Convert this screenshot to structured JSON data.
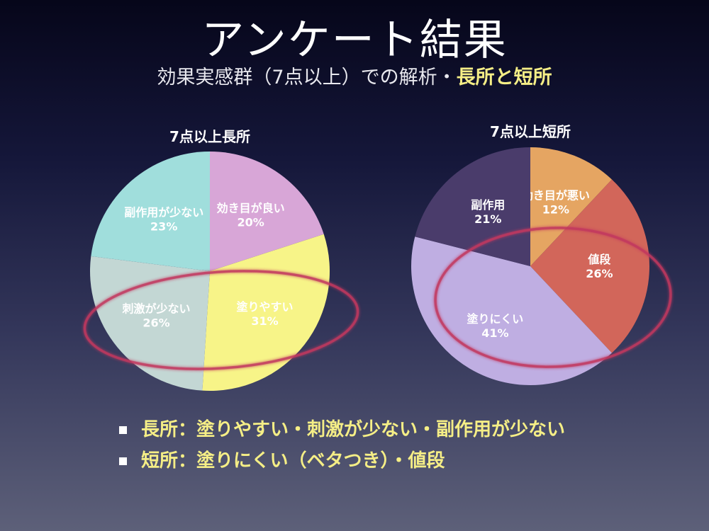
{
  "slide": {
    "title": "アンケート結果",
    "subtitle_prefix": "効果実感群（7点以上）での解析・",
    "subtitle_highlight": "長所と短所"
  },
  "chart_data": [
    {
      "type": "pie",
      "title": "7点以上長所",
      "slices": [
        {
          "label": "効き目が良い",
          "value": 20,
          "pct_text": "20%",
          "color": "#d8a6d7"
        },
        {
          "label": "塗りやすい",
          "value": 31,
          "pct_text": "31%",
          "color": "#f7f488"
        },
        {
          "label": "刺激が少ない",
          "value": 26,
          "pct_text": "26%",
          "color": "#c3d7d4"
        },
        {
          "label": "副作用が少ない",
          "value": 23,
          "pct_text": "23%",
          "color": "#a0dedc"
        }
      ],
      "highlighted": [
        "塗りやすい",
        "刺激が少ない"
      ]
    },
    {
      "type": "pie",
      "title": "7点以上短所",
      "slices": [
        {
          "label": "効き目が悪い",
          "value": 12,
          "pct_text": "12%",
          "color": "#e5a562"
        },
        {
          "label": "値段",
          "value": 26,
          "pct_text": "26%",
          "color": "#d2665a"
        },
        {
          "label": "塗りにくい",
          "value": 41,
          "pct_text": "41%",
          "color": "#bfaee2"
        },
        {
          "label": "副作用",
          "value": 21,
          "pct_text": "21%",
          "color": "#4a3c6b"
        }
      ],
      "highlighted": [
        "塗りにくい"
      ]
    }
  ],
  "highlight_color": "#c2375f",
  "bullets": [
    {
      "text": "長所：塗りやすい・刺激が少ない・副作用が少ない"
    },
    {
      "text": "短所：塗りにくい（ベタつき）・値段"
    }
  ]
}
